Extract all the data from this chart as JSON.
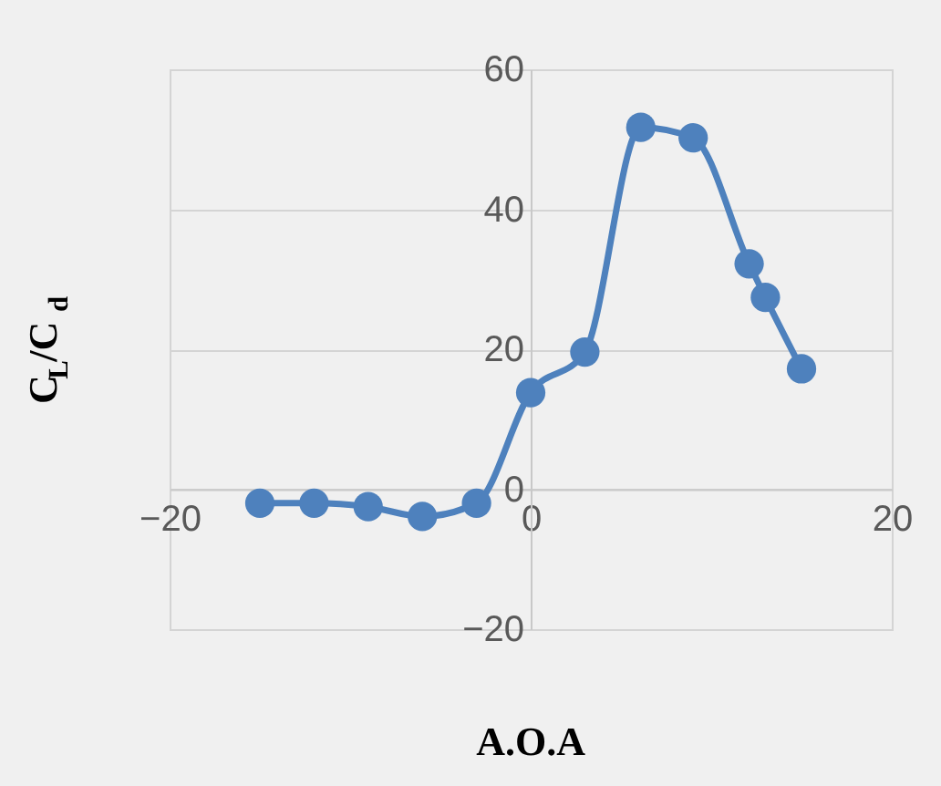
{
  "chart_data": {
    "type": "line",
    "xlabel": "A.O.A",
    "ylabel": "C$_{L}$/C$_{d}$",
    "x": [
      -15,
      -12,
      -9,
      -6,
      -3,
      0,
      3,
      6.1,
      9,
      12.1,
      13,
      15
    ],
    "series": [
      {
        "color": "#4e81bd",
        "values": [
          -2.0,
          -2.0,
          -2.5,
          -3.9,
          -2.0,
          13.8,
          19.6,
          51.7,
          50.2,
          32.2,
          27.4,
          17.2
        ]
      }
    ],
    "xlim": [
      -20,
      20
    ],
    "xticks": [
      -20,
      0,
      20
    ],
    "ylim": [
      -20,
      60
    ],
    "yticks": [
      -20,
      0,
      20,
      40,
      60
    ],
    "grid": true,
    "marker": "circle",
    "line_style": "solid",
    "legend": false
  }
}
